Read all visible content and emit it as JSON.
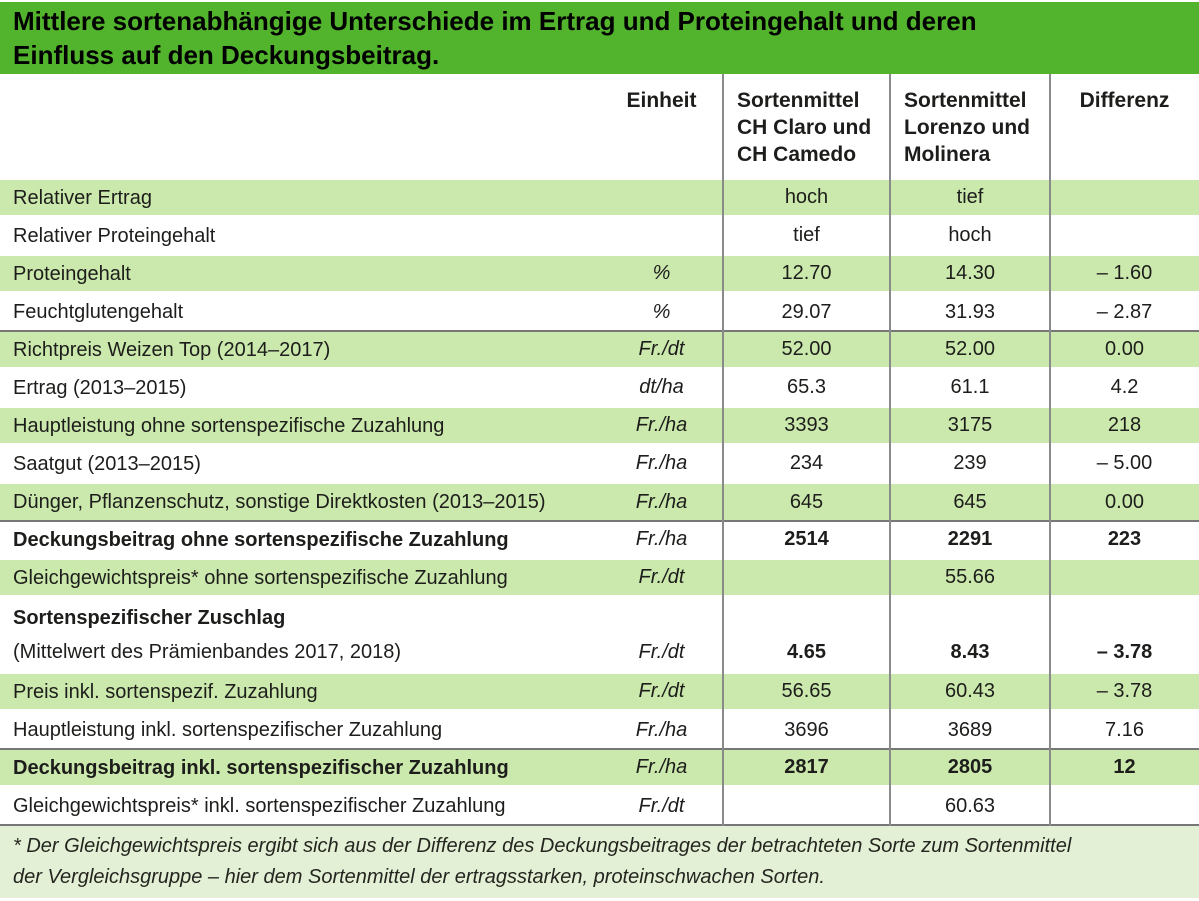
{
  "title": {
    "line1": "Mittlere sortenabhängige Unterschiede im Ertrag und Proteingehalt und deren",
    "line2": "Einfluss auf den Deckungsbeitrag."
  },
  "columns": {
    "einheit": "Einheit",
    "group1_lines": [
      "Sortenmittel",
      "CH Claro und",
      "CH Camedo"
    ],
    "group2_lines": [
      "Sortenmittel",
      "Lorenzo und",
      "Molinera"
    ],
    "differenz": "Differenz"
  },
  "rows": [
    {
      "label": "Relativer Ertrag",
      "unit": "",
      "v1": "hoch",
      "v2": "tief",
      "diff": "",
      "green": true,
      "bold": false,
      "section_end": false
    },
    {
      "label": "Relativer Proteingehalt",
      "unit": "",
      "v1": "tief",
      "v2": "hoch",
      "diff": "",
      "green": false,
      "bold": false,
      "section_end": false
    },
    {
      "label": "Proteingehalt",
      "unit": "%",
      "v1": "12.70",
      "v2": "14.30",
      "diff": "– 1.60",
      "green": true,
      "bold": false,
      "section_end": false
    },
    {
      "label": "Feuchtglutengehalt",
      "unit": "%",
      "v1": "29.07",
      "v2": "31.93",
      "diff": "– 2.87",
      "green": false,
      "bold": false,
      "section_end": true
    },
    {
      "label": "Richtpreis Weizen Top (2014–2017)",
      "unit": "Fr./dt",
      "v1": "52.00",
      "v2": "52.00",
      "diff": "0.00",
      "green": true,
      "bold": false,
      "section_end": false
    },
    {
      "label": "Ertrag (2013–2015)",
      "unit": "dt/ha",
      "v1": "65.3",
      "v2": "61.1",
      "diff": "4.2",
      "green": false,
      "bold": false,
      "section_end": false
    },
    {
      "label": "Hauptleistung ohne sortenspezifische Zuzahlung",
      "unit": "Fr./ha",
      "v1": "3393",
      "v2": "3175",
      "diff": "218",
      "green": true,
      "bold": false,
      "section_end": false
    },
    {
      "label": "Saatgut (2013–2015)",
      "unit": "Fr./ha",
      "v1": "234",
      "v2": "239",
      "diff": "– 5.00",
      "green": false,
      "bold": false,
      "section_end": false
    },
    {
      "label": "Dünger, Pflanzenschutz, sonstige Direktkosten (2013–2015)",
      "unit": "Fr./ha",
      "v1": "645",
      "v2": "645",
      "diff": "0.00",
      "green": true,
      "bold": false,
      "section_end": true
    },
    {
      "label": "Deckungsbeitrag ohne sortenspezifische Zuzahlung",
      "unit": "Fr./ha",
      "v1": "2514",
      "v2": "2291",
      "diff": "223",
      "green": false,
      "bold": true,
      "section_end": false
    },
    {
      "label": "Gleichgewichtspreis* ohne sortenspezifische Zuzahlung",
      "unit": "Fr./dt",
      "v1": "",
      "v2": "55.66",
      "diff": "",
      "green": true,
      "bold": false,
      "section_end": false
    },
    {
      "label": "Sortenspezifischer Zuschlag",
      "label2": "(Mittelwert des Prämienbandes 2017, 2018)",
      "unit": "Fr./dt",
      "v1": "4.65",
      "v2": "8.43",
      "diff": "– 3.78",
      "green": false,
      "bold": true,
      "section_end": false
    },
    {
      "label": "Preis inkl. sortenspezif. Zuzahlung",
      "unit": "Fr./dt",
      "v1": "56.65",
      "v2": "60.43",
      "diff": "– 3.78",
      "green": true,
      "bold": false,
      "section_end": false
    },
    {
      "label": "Hauptleistung inkl. sortenspezifischer Zuzahlung",
      "unit": "Fr./ha",
      "v1": "3696",
      "v2": "3689",
      "diff": "7.16",
      "green": false,
      "bold": false,
      "section_end": true
    },
    {
      "label": "Deckungsbeitrag inkl. sortenspezifischer Zuzahlung",
      "unit": "Fr./ha",
      "v1": "2817",
      "v2": "2805",
      "diff": "12",
      "green": true,
      "bold": true,
      "section_end": false
    },
    {
      "label": "Gleichgewichtspreis* inkl. sortenspezifischer Zuzahlung",
      "unit": "Fr./dt",
      "v1": "",
      "v2": "60.63",
      "diff": "",
      "green": false,
      "bold": false,
      "section_end": true
    }
  ],
  "footnote": {
    "line1": "* Der Gleichgewichtspreis ergibt sich aus der Differenz des Deckungsbeitrages der betrachteten Sorte zum Sortenmittel",
    "line2": "der Vergleichsgruppe – hier dem Sortenmittel der ertragsstarken, proteinschwachen Sorten."
  },
  "colors": {
    "title_bg": "#52b32c",
    "row_green": "#cbe9ac",
    "footnote_bg": "#e3f0d5",
    "column_divider": "#8a8a8a",
    "section_line": "#777777",
    "text": "#1d1d1b",
    "title_text": "#000000"
  }
}
